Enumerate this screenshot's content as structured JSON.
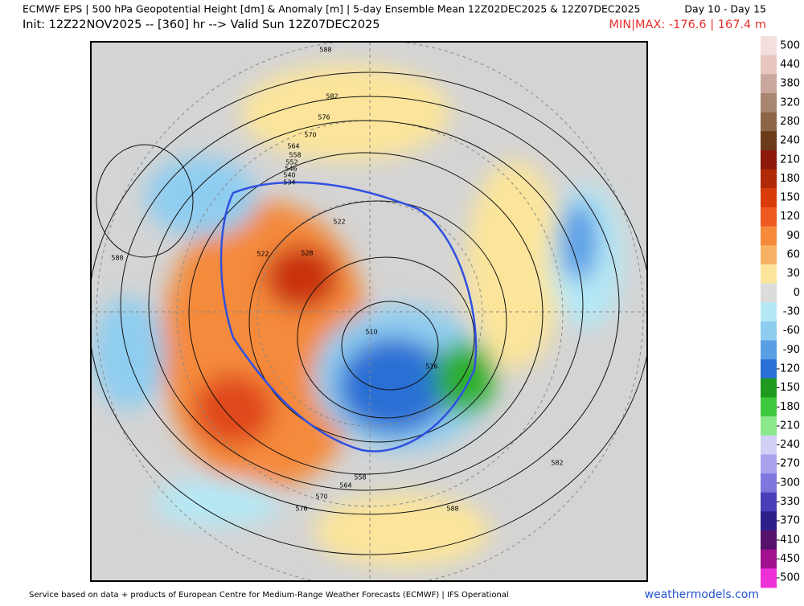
{
  "header": {
    "title": "ECMWF EPS | 500 hPa Geopotential Height [dm] & Anomaly [m] | 5-day Ensemble Mean 12Z02DEC2025 & 12Z07DEC2025",
    "days": "Day 10 - Day 15",
    "init": "Init: 12Z22NOV2025 -- [360] hr --> Valid Sun 12Z07DEC2025",
    "minmax": "MIN|MAX: -176.6 | 167.4 m"
  },
  "colorbar": {
    "labels": [
      500,
      440,
      380,
      320,
      280,
      240,
      210,
      180,
      150,
      120,
      90,
      60,
      30,
      0,
      -30,
      -60,
      -90,
      -120,
      -150,
      -180,
      -210,
      -240,
      -270,
      -300,
      -330,
      -370,
      -410,
      -450,
      -500
    ],
    "colors": [
      "#f5dede",
      "#e6c6bf",
      "#c9a79c",
      "#a98671",
      "#8c6547",
      "#6b3b1a",
      "#8b1a0a",
      "#b02a08",
      "#d93c0a",
      "#ee5a20",
      "#f48a3a",
      "#f8b265",
      "#fce59a",
      "#dcdcdc",
      "#b5e8f5",
      "#8fcdf0",
      "#5a9fe6",
      "#2a6fd4",
      "#1e9a1e",
      "#3ec83e",
      "#8ae88a",
      "#d0d0f5",
      "#a9a3ee",
      "#7f77dd",
      "#4a3fb8",
      "#2d1f88",
      "#55136b",
      "#a0108f",
      "#ee30d8"
    ]
  },
  "contour_labels": [
    588,
    582,
    576,
    570,
    564,
    558,
    552,
    546,
    540,
    534,
    522,
    528,
    522,
    510,
    516,
    588,
    582,
    588,
    576,
    570,
    564,
    558
  ],
  "footer": {
    "credit": "Service based on data + products of European Centre for Medium-Range Weather Forecasts (ECMWF) | IFS Operational",
    "site": "weathermodels.com"
  }
}
